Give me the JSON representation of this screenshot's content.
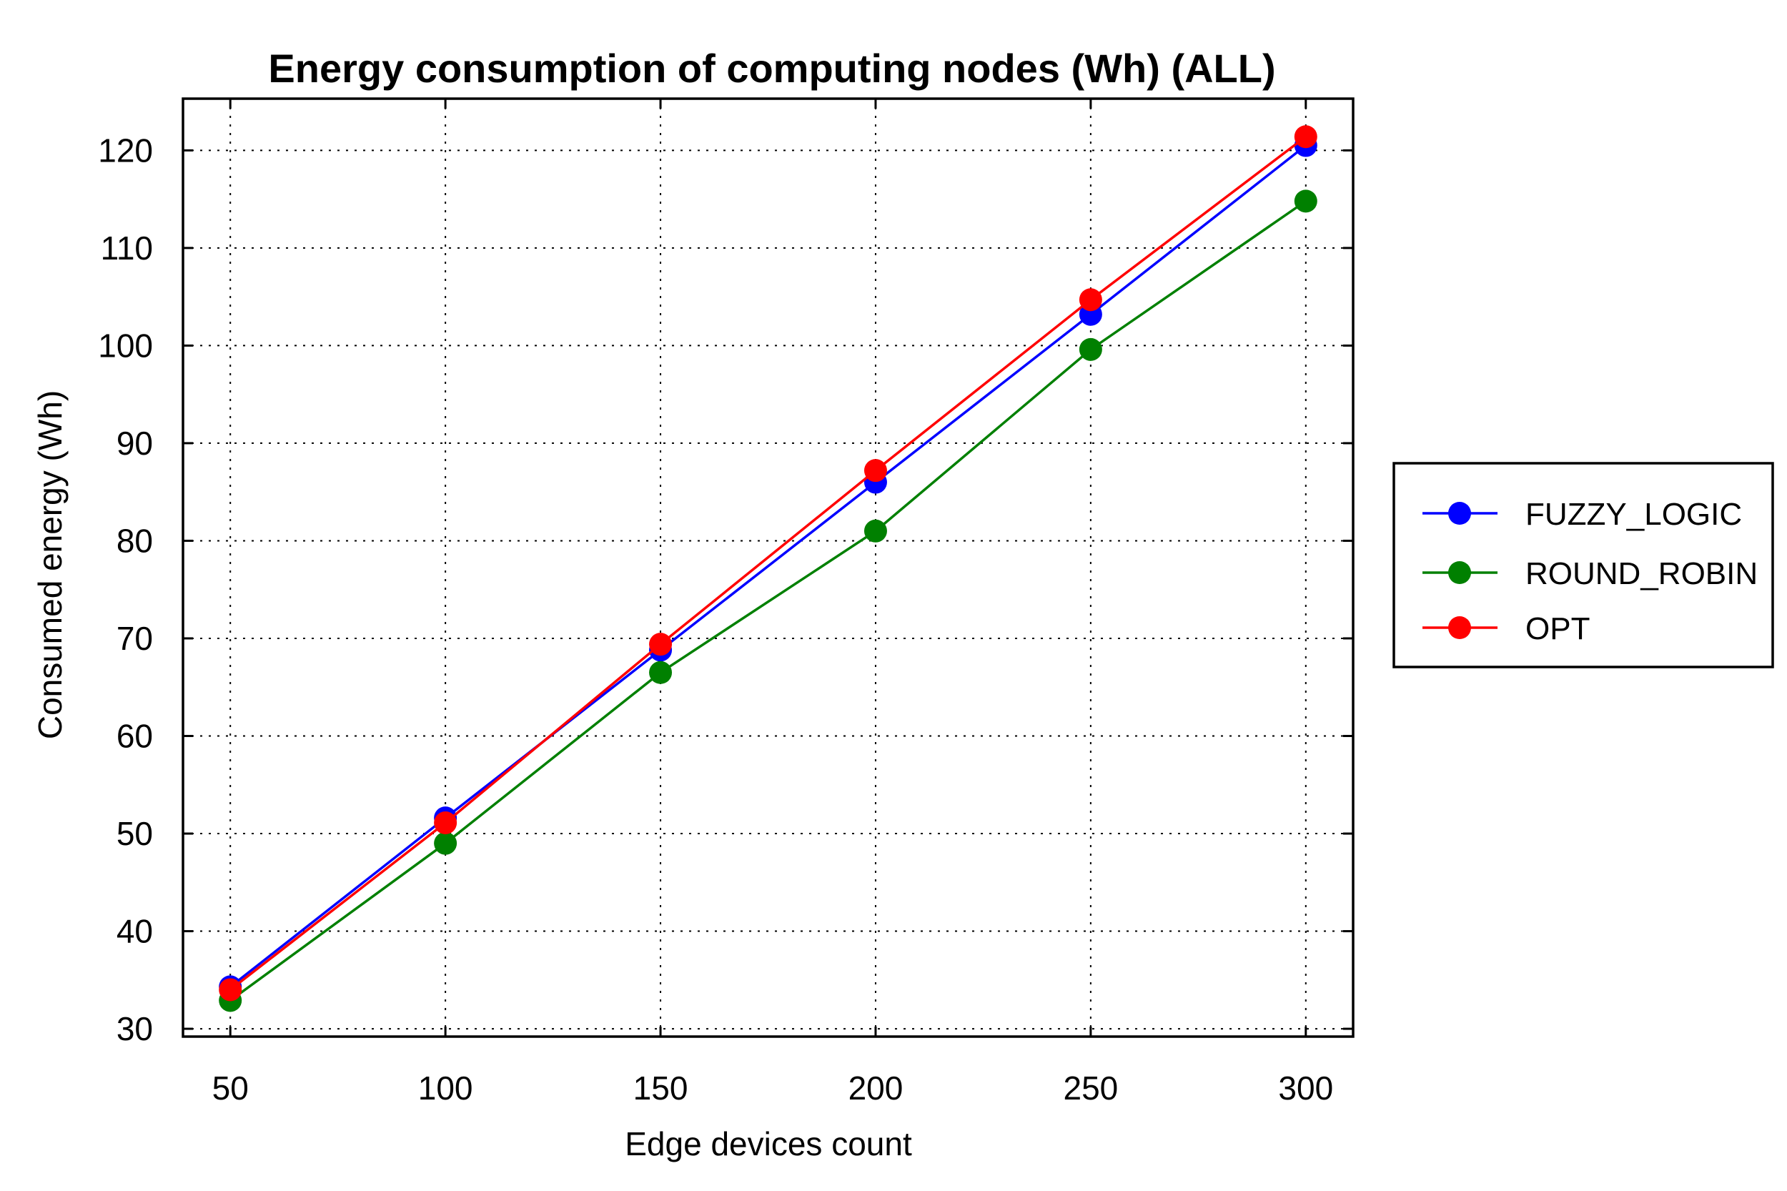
{
  "chart_data": {
    "type": "line",
    "title": "Energy consumption of computing nodes (Wh) (ALL)",
    "xlabel": "Edge devices count",
    "ylabel": "Consumed energy (Wh)",
    "x": [
      50,
      100,
      150,
      200,
      250,
      300
    ],
    "xlim": [
      39,
      311
    ],
    "ylim": [
      29.2,
      125.3
    ],
    "xticks": [
      50,
      100,
      150,
      200,
      250,
      300
    ],
    "yticks": [
      30,
      40,
      50,
      60,
      70,
      80,
      90,
      100,
      110,
      120
    ],
    "grid": true,
    "legend_position": "right, outside plot",
    "series": [
      {
        "name": "FUZZY_LOGIC",
        "color": "#0000ff",
        "marker": "circle",
        "values": [
          34.3,
          51.6,
          68.8,
          86.0,
          103.2,
          120.5
        ]
      },
      {
        "name": " ROUND_ROBIN",
        "color": "#008000",
        "marker": "circle",
        "values": [
          32.9,
          49.0,
          66.5,
          81.0,
          99.6,
          114.8
        ]
      },
      {
        "name": "OPT",
        "color": "#ff0000",
        "marker": "circle",
        "values": [
          34.0,
          51.1,
          69.4,
          87.2,
          104.7,
          121.4
        ]
      }
    ]
  }
}
